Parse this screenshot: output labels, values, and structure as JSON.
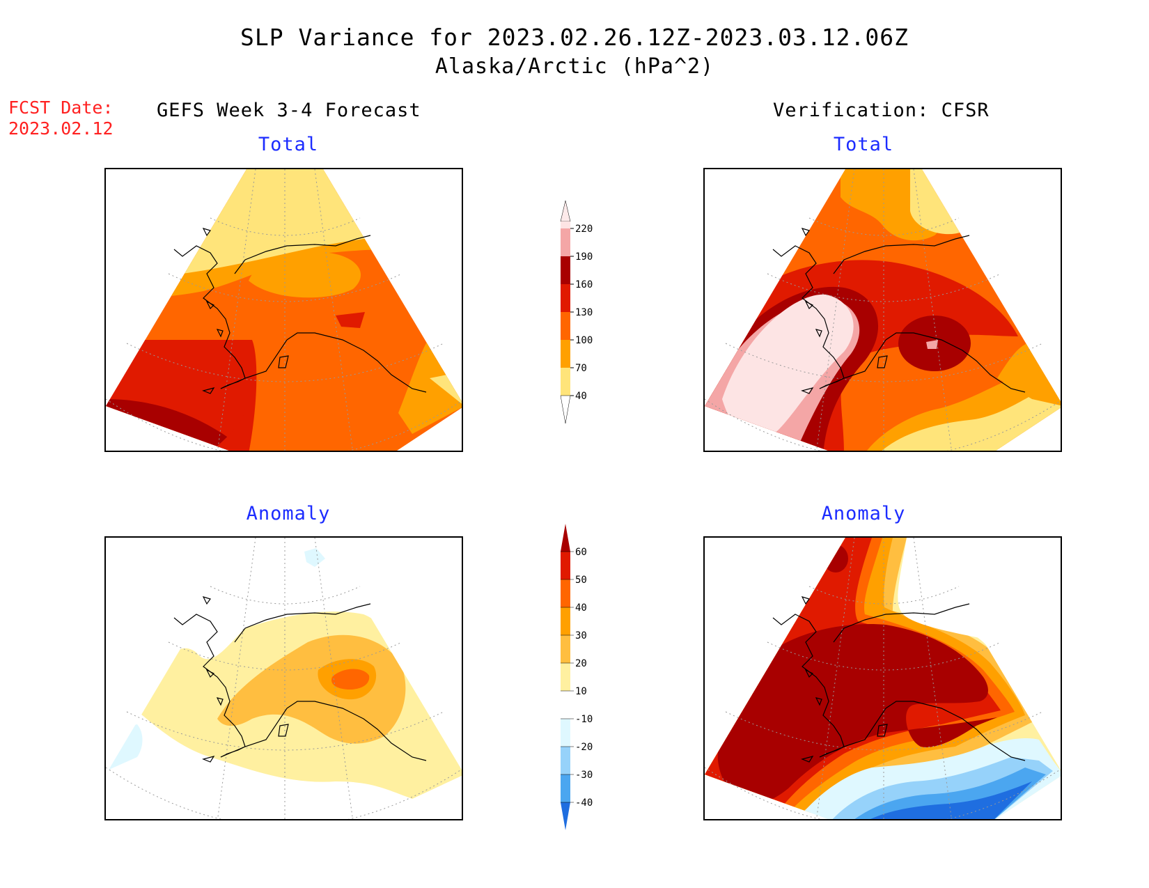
{
  "header": {
    "title": "SLP Variance for 2023.02.26.12Z-2023.03.12.06Z",
    "subtitle": "Alaska/Arctic (hPa^2)",
    "fcst_label": "FCST Date:",
    "fcst_date": "2023.02.12",
    "left_column": "GEFS Week 3-4 Forecast",
    "right_column": "Verification: CFSR"
  },
  "panels": {
    "forecast_total": "Total",
    "verification_total": "Total",
    "forecast_anomaly": "Anomaly",
    "verification_anomaly": "Anomaly"
  },
  "colorbars": {
    "total": {
      "labels": [
        "220",
        "190",
        "160",
        "130",
        "100",
        "70",
        "40"
      ],
      "colors": [
        "#fde4e4",
        "#f4a6a6",
        "#a80000",
        "#e01a00",
        "#ff6600",
        "#ffa000",
        "#ffe47a"
      ]
    },
    "anomaly": {
      "labels": [
        "60",
        "50",
        "40",
        "30",
        "20",
        "10",
        "-10",
        "-20",
        "-30",
        "-40"
      ],
      "colors": [
        "#a80000",
        "#e01a00",
        "#ff6600",
        "#ffa000",
        "#ffbe40",
        "#fff0a0",
        "#ffffff",
        "#dff8ff",
        "#96d2fa",
        "#4ba6f0",
        "#1f6ee0"
      ]
    }
  },
  "colors": {
    "title_red": "#ff2020",
    "panel_title_blue": "#1c2cff"
  }
}
